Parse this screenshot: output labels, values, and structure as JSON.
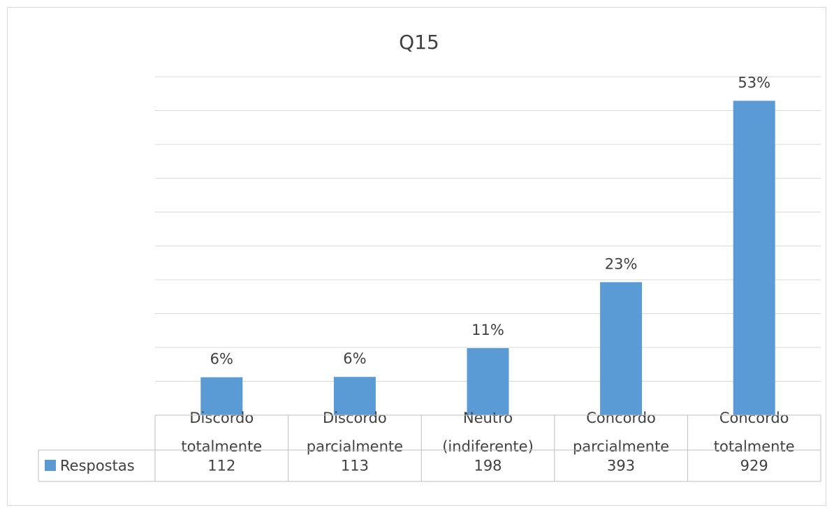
{
  "chart_data": {
    "type": "bar",
    "title": "Q15",
    "categories": [
      [
        "Discordo",
        "totalmente"
      ],
      [
        "Discordo",
        "parcialmente"
      ],
      [
        "Neutro",
        "(indiferente)"
      ],
      [
        "Concordo",
        "parcialmente"
      ],
      [
        "Concordo",
        "totalmente"
      ]
    ],
    "series": [
      {
        "name": "Respostas",
        "color": "#5b9bd5",
        "values": [
          112,
          113,
          198,
          393,
          929
        ],
        "data_labels": [
          "6%",
          "6%",
          "11%",
          "23%",
          "53%"
        ]
      }
    ],
    "ylim": [
      0,
      1000
    ],
    "yticks": [
      0,
      100,
      200,
      300,
      400,
      500,
      600,
      700,
      800,
      900,
      1000
    ],
    "grid": true,
    "data_table": true
  }
}
